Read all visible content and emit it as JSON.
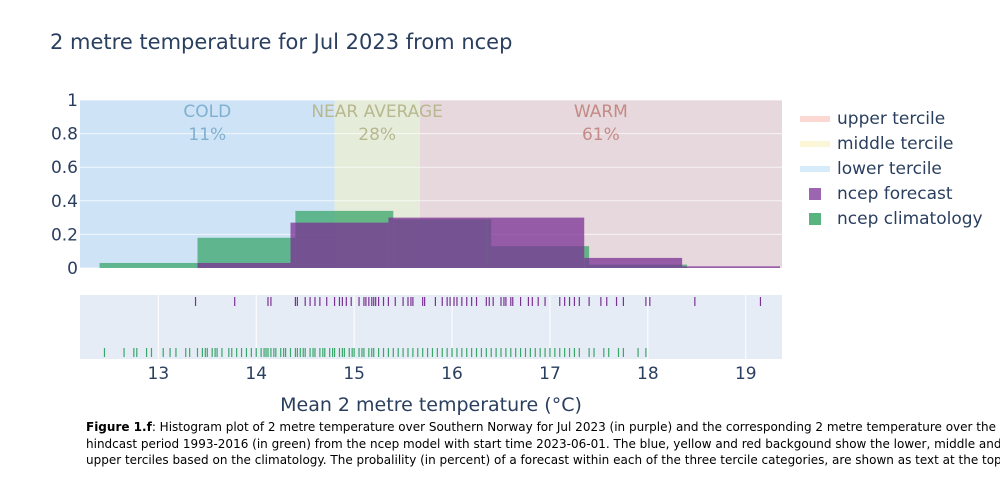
{
  "chart_data": {
    "type": "bar",
    "title": "2 metre temperature for Jul 2023 from ncep",
    "xlabel": "Mean 2 metre temperature (°C)",
    "ylabel": "",
    "xlim": [
      12.2,
      19.37
    ],
    "ylim": [
      0,
      1
    ],
    "xticks": [
      "13",
      "14",
      "15",
      "16",
      "17",
      "18",
      "19"
    ],
    "yticks": [
      "0",
      "0.2",
      "0.4",
      "0.6",
      "0.8",
      "1"
    ],
    "grid": true,
    "legend_position": "right",
    "terciles": [
      {
        "name": "lower tercile",
        "range": [
          12.2,
          14.8
        ],
        "color": "#cfe3f7",
        "label": "COLD",
        "percent": "11%",
        "text_color": "#7fb0cf"
      },
      {
        "name": "middle tercile",
        "range": [
          14.8,
          15.67
        ],
        "color": "#e5ecd9",
        "label": "NEAR AVERAGE",
        "percent": "28%",
        "text_color": "#b8b88f"
      },
      {
        "name": "upper tercile",
        "range": [
          15.67,
          19.37
        ],
        "color": "#e6d8dc",
        "label": "WARM",
        "percent": "61%",
        "text_color": "#c48a86"
      }
    ],
    "legend_colors": {
      "upper tercile": "#fbd9d2",
      "middle tercile": "#fbf7d6",
      "lower tercile": "#d6ecfb"
    },
    "series": [
      {
        "name": "ncep climatology",
        "color": "#3aa66a",
        "bins": [
          {
            "x0": 12.4,
            "x1": 13.4,
            "y": 0.03
          },
          {
            "x0": 13.4,
            "x1": 14.4,
            "y": 0.18
          },
          {
            "x0": 14.4,
            "x1": 15.4,
            "y": 0.34
          },
          {
            "x0": 15.4,
            "x1": 16.4,
            "y": 0.29
          },
          {
            "x0": 16.4,
            "x1": 17.4,
            "y": 0.13
          },
          {
            "x0": 17.4,
            "x1": 18.4,
            "y": 0.02
          }
        ],
        "rug": [
          12.45,
          12.65,
          12.75,
          12.78,
          12.88,
          12.93,
          13.05,
          13.12,
          13.18,
          13.28,
          13.32,
          13.4,
          13.45,
          13.48,
          13.5,
          13.55,
          13.58,
          13.6,
          13.65,
          13.72,
          13.75,
          13.8,
          13.85,
          13.9,
          13.95,
          14.0,
          14.05,
          14.08,
          14.1,
          14.12,
          14.15,
          14.18,
          14.2,
          14.25,
          14.28,
          14.3,
          14.35,
          14.4,
          14.42,
          14.45,
          14.48,
          14.5,
          14.55,
          14.58,
          14.6,
          14.65,
          14.68,
          14.7,
          14.75,
          14.78,
          14.8,
          14.85,
          14.88,
          14.9,
          14.95,
          14.98,
          15.0,
          15.05,
          15.08,
          15.1,
          15.15,
          15.18,
          15.2,
          15.25,
          15.3,
          15.35,
          15.4,
          15.45,
          15.5,
          15.55,
          15.6,
          15.65,
          15.7,
          15.75,
          15.8,
          15.85,
          15.9,
          15.95,
          16.0,
          16.05,
          16.1,
          16.15,
          16.2,
          16.25,
          16.3,
          16.35,
          16.4,
          16.45,
          16.5,
          16.55,
          16.6,
          16.65,
          16.7,
          16.75,
          16.8,
          16.85,
          16.9,
          16.95,
          17.0,
          17.05,
          17.1,
          17.15,
          17.2,
          17.25,
          17.3,
          17.4,
          17.45,
          17.55,
          17.6,
          17.7,
          17.75,
          17.9,
          17.98
        ]
      },
      {
        "name": "ncep forecast",
        "color": "#7b3294",
        "bins": [
          {
            "x0": 13.4,
            "x1": 14.35,
            "y": 0.03
          },
          {
            "x0": 14.35,
            "x1": 15.35,
            "y": 0.27
          },
          {
            "x0": 15.35,
            "x1": 16.35,
            "y": 0.3
          },
          {
            "x0": 16.35,
            "x1": 17.35,
            "y": 0.3
          },
          {
            "x0": 17.35,
            "x1": 18.35,
            "y": 0.06
          },
          {
            "x0": 18.35,
            "x1": 19.35,
            "y": 0.01
          }
        ],
        "rug": [
          13.38,
          13.78,
          14.12,
          14.15,
          14.4,
          14.42,
          14.5,
          14.55,
          14.6,
          14.65,
          14.72,
          14.8,
          14.85,
          14.88,
          14.92,
          14.97,
          15.05,
          15.1,
          15.12,
          15.15,
          15.18,
          15.2,
          15.22,
          15.25,
          15.3,
          15.35,
          15.42,
          15.5,
          15.55,
          15.58,
          15.6,
          15.7,
          15.72,
          15.83,
          15.9,
          15.95,
          15.98,
          16.02,
          16.05,
          16.1,
          16.15,
          16.2,
          16.25,
          16.35,
          16.38,
          16.42,
          16.5,
          16.53,
          16.55,
          16.6,
          16.62,
          16.7,
          16.78,
          16.82,
          16.88,
          16.95,
          17.1,
          17.15,
          17.2,
          17.25,
          17.3,
          17.4,
          17.52,
          17.58,
          17.68,
          17.75,
          17.98,
          18.02,
          18.48,
          19.15
        ]
      }
    ],
    "caption_prefix": "Figure 1.f",
    "caption_lines": [
      ": Histogram plot of 2 metre temperature over Southern Norway for Jul 2023 (in purple) and the corresponding 2 metre temperature over the",
      "hindcast period 1993-2016 (in green) from the ncep model with start time 2023-06-01. The blue, yellow and red backgound show the lower, middle and",
      "upper terciles based on the climatology. The probalility (in percent) of a forecast within each of the three tercile categories, are shown as text at the top."
    ]
  }
}
